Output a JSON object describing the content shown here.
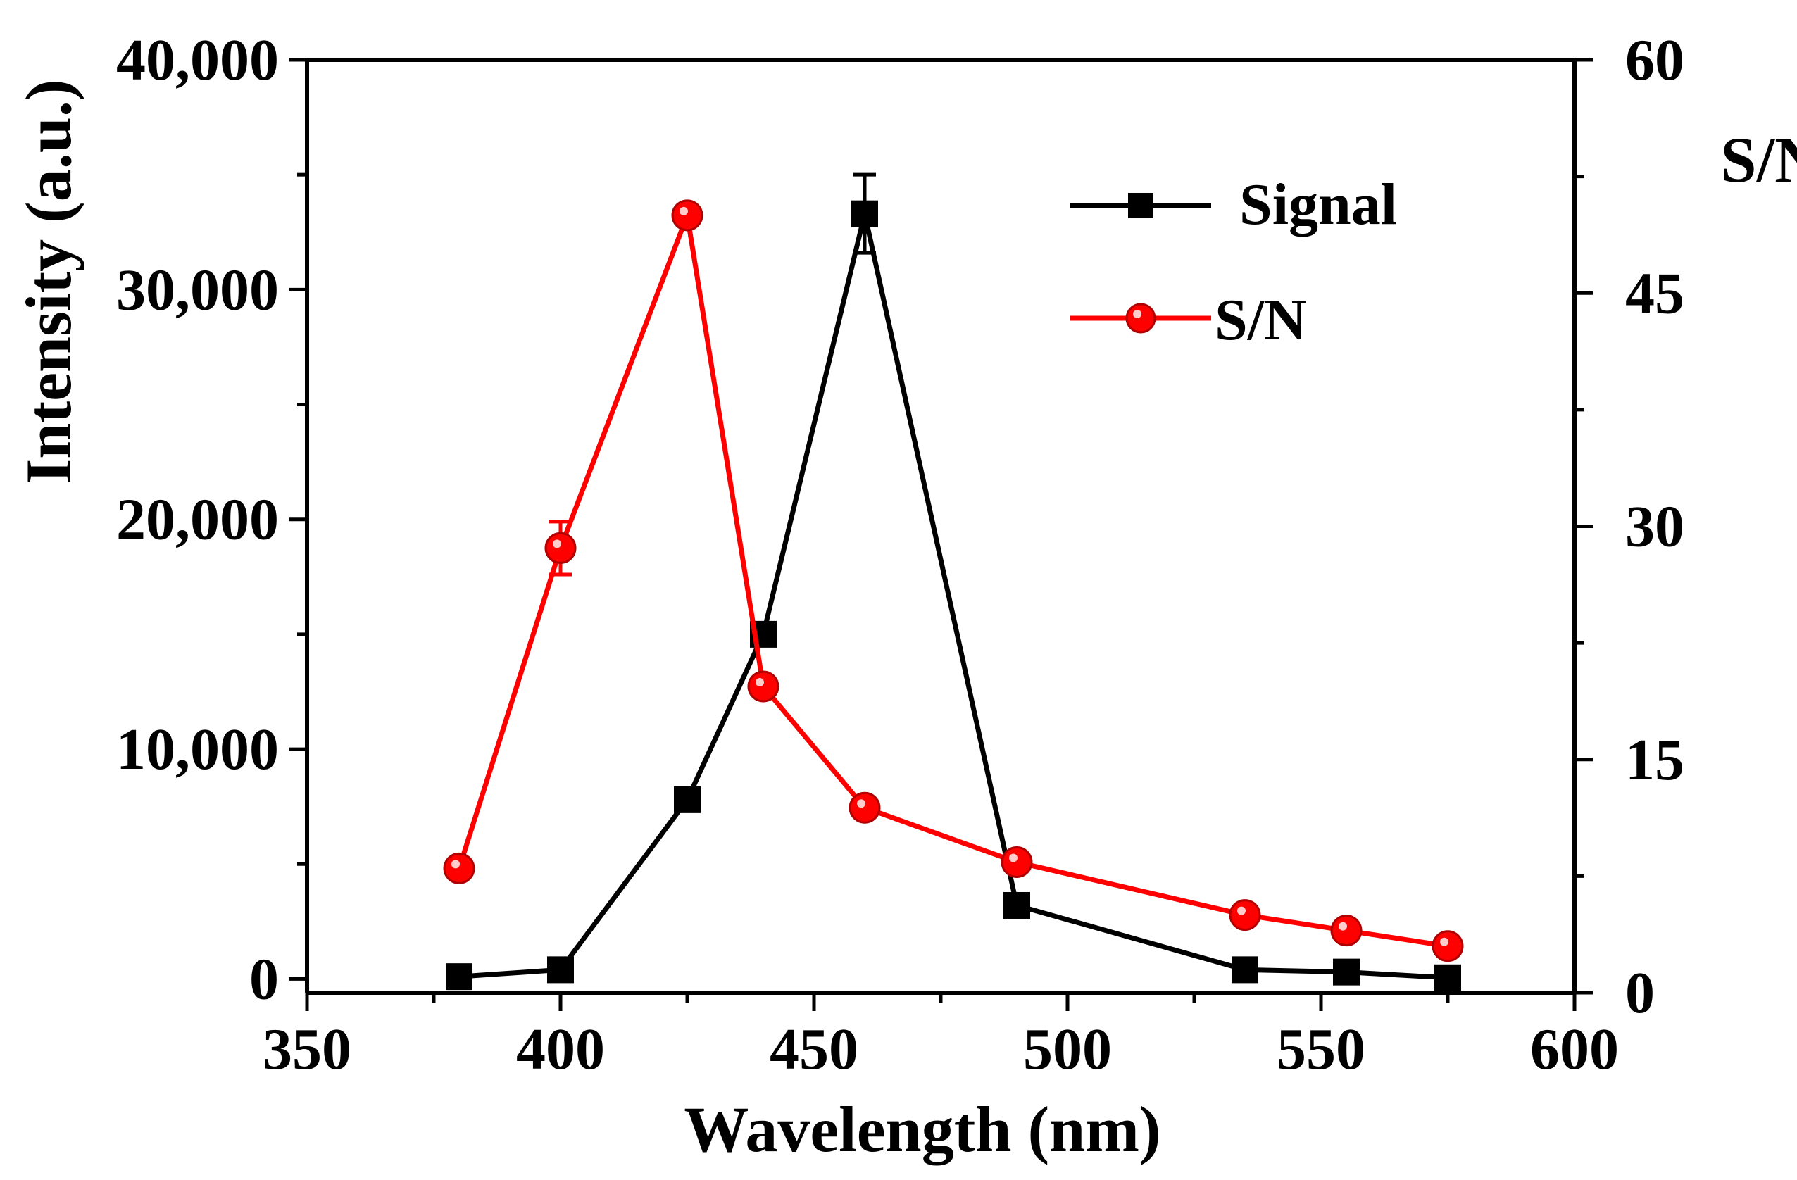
{
  "chart_data": {
    "type": "line",
    "title": "",
    "xlabel": "Wavelength (nm)",
    "ylabel": "Intensity (a.u.)",
    "y2label": "S/N",
    "xlim": [
      350,
      600
    ],
    "ylim": [
      -600,
      40000
    ],
    "y2lim": [
      0,
      60
    ],
    "x_ticks": [
      "350",
      "400",
      "450",
      "500",
      "550",
      "600"
    ],
    "y_ticks": [
      "0",
      "10,000",
      "20,000",
      "30,000",
      "40,000"
    ],
    "y2_ticks": [
      "0",
      "15",
      "30",
      "45",
      "60"
    ],
    "legend_position": "top-right",
    "colors": {
      "signal": "#000000",
      "sn": "#ff0000"
    },
    "series": [
      {
        "name": "Signal",
        "axis": "left",
        "marker": "square",
        "x": [
          380,
          400,
          425,
          440,
          460,
          490,
          535,
          555,
          575
        ],
        "values": [
          100,
          400,
          7800,
          15000,
          33300,
          3200,
          400,
          300,
          50
        ],
        "errors": [
          0,
          0,
          0,
          0,
          1700,
          0,
          0,
          0,
          0
        ]
      },
      {
        "name": "S/N",
        "axis": "right",
        "marker": "circle",
        "x": [
          380,
          400,
          425,
          440,
          460,
          490,
          535,
          555,
          575
        ],
        "values": [
          8,
          28.6,
          50,
          19.7,
          11.9,
          8.4,
          5,
          4,
          3
        ],
        "errors": [
          0,
          1.7,
          0.2,
          0,
          0,
          0.5,
          0,
          0,
          0
        ]
      }
    ]
  }
}
